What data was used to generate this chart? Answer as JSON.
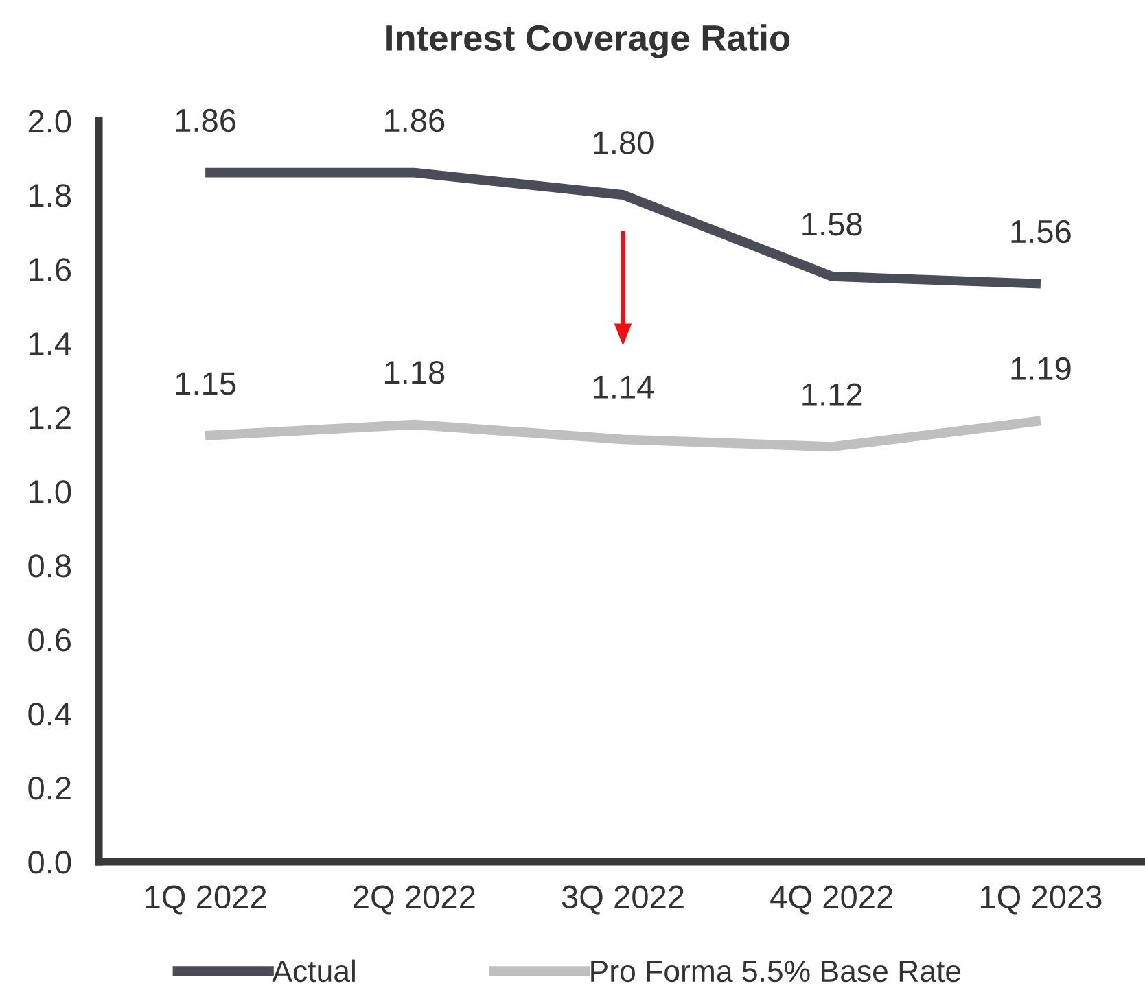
{
  "chart_data": {
    "type": "line",
    "title": "Interest Coverage Ratio",
    "categories": [
      "1Q 2022",
      "2Q 2022",
      "3Q 2022",
      "4Q 2022",
      "1Q 2023"
    ],
    "series": [
      {
        "name": "Actual",
        "color": "#4a4d57",
        "values": [
          1.86,
          1.86,
          1.8,
          1.58,
          1.56
        ],
        "value_labels": [
          "1.86",
          "1.86",
          "1.80",
          "1.58",
          "1.56"
        ]
      },
      {
        "name": "Pro Forma 5.5% Base Rate",
        "color": "#bfbfbf",
        "values": [
          1.15,
          1.18,
          1.14,
          1.12,
          1.19
        ],
        "value_labels": [
          "1.15",
          "1.18",
          "1.14",
          "1.12",
          "1.19"
        ]
      }
    ],
    "ylim": [
      0,
      2.0
    ],
    "yticks": [
      {
        "value": 0,
        "label": "0.0"
      },
      {
        "value": 0.2,
        "label": "0.2"
      },
      {
        "value": 0.4,
        "label": "0.4"
      },
      {
        "value": 0.6,
        "label": "0.6"
      },
      {
        "value": 0.8,
        "label": "0.8"
      },
      {
        "value": 1.0,
        "label": "1.0"
      },
      {
        "value": 1.2,
        "label": "1.2"
      },
      {
        "value": 1.4,
        "label": "1.4"
      },
      {
        "value": 1.6,
        "label": "1.6"
      },
      {
        "value": 1.8,
        "label": "1.8"
      },
      {
        "value": 2.0,
        "label": "2.0"
      }
    ],
    "legend": "bottom",
    "grid": false,
    "marker": "none",
    "line_style": "solid"
  }
}
